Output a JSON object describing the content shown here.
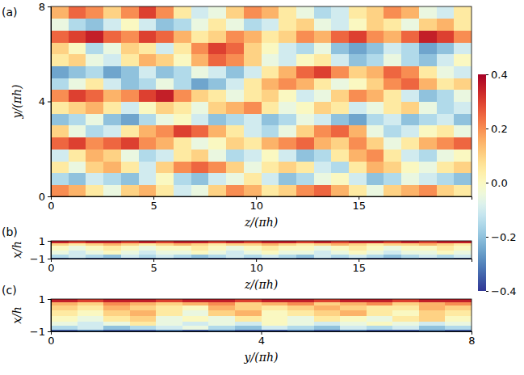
{
  "chart_data": [
    {
      "type": "heatmap",
      "title": "(a)",
      "x_label": "z/(πh)",
      "y_label": "y/(πh)",
      "xlim": [
        0,
        20.5
      ],
      "ylim": [
        0,
        8
      ],
      "xticks": [
        0,
        5,
        10,
        15
      ],
      "yticks": [
        0,
        4,
        8
      ],
      "color_range": [
        -0.4,
        0.4
      ],
      "color_ticks": [
        {
          "value": -0.4,
          "label": "−0.4"
        },
        {
          "value": -0.2,
          "label": "−0.2"
        },
        {
          "value": 0,
          "label": "0.0"
        },
        0.2,
        0.4
      ],
      "x": [
        0.43,
        1.28,
        2.14,
        2.99,
        3.84,
        4.7,
        5.55,
        6.41,
        7.26,
        8.11,
        8.97,
        9.82,
        10.68,
        11.53,
        12.39,
        13.24,
        14.09,
        14.95,
        15.8,
        16.66,
        17.51,
        18.36,
        19.22,
        20.07
      ],
      "y": [
        0.25,
        0.75,
        1.25,
        1.75,
        2.25,
        2.75,
        3.25,
        3.75,
        4.25,
        4.75,
        5.25,
        5.75,
        6.25,
        6.75,
        7.25,
        7.75
      ],
      "cells": [
        [
          0.2,
          0.15,
          0.05,
          -0.05,
          0.1,
          0.15,
          0.05,
          -0.1,
          -0.05,
          0.1,
          0.2,
          0.15,
          0.05,
          0.1,
          0.2,
          0.25,
          0.15,
          0.05,
          -0.05,
          0.1,
          0.15,
          0.2,
          0.1,
          0.05
        ],
        [
          -0.15,
          -0.2,
          -0.1,
          -0.15,
          -0.2,
          -0.1,
          0.0,
          -0.15,
          -0.2,
          -0.1,
          -0.05,
          0.05,
          -0.1,
          -0.2,
          -0.15,
          -0.05,
          0.0,
          -0.1,
          -0.2,
          -0.15,
          -0.05,
          -0.1,
          -0.15,
          -0.2
        ],
        [
          0.05,
          -0.05,
          0.1,
          0.15,
          0.05,
          -0.1,
          0.1,
          0.2,
          0.25,
          0.2,
          0.1,
          -0.05,
          0.05,
          0.1,
          0.05,
          -0.1,
          -0.15,
          0.05,
          0.15,
          0.1,
          0.0,
          -0.05,
          0.05,
          0.1
        ],
        [
          -0.1,
          0.05,
          0.15,
          0.1,
          -0.05,
          -0.15,
          -0.1,
          0.05,
          0.1,
          -0.05,
          -0.15,
          -0.1,
          0.0,
          -0.1,
          -0.2,
          -0.15,
          0.05,
          0.15,
          0.2,
          0.05,
          -0.1,
          -0.15,
          -0.05,
          0.0
        ],
        [
          0.25,
          0.3,
          0.2,
          0.25,
          0.3,
          0.2,
          0.15,
          0.05,
          -0.05,
          0.0,
          0.1,
          0.05,
          0.15,
          0.2,
          0.25,
          0.15,
          0.1,
          0.2,
          0.1,
          -0.05,
          0.05,
          0.15,
          0.2,
          0.25
        ],
        [
          0.1,
          -0.05,
          -0.15,
          -0.1,
          0.05,
          0.15,
          0.2,
          0.3,
          0.25,
          0.15,
          0.05,
          -0.1,
          -0.15,
          -0.05,
          0.1,
          0.2,
          0.25,
          0.15,
          -0.05,
          -0.15,
          -0.1,
          0.0,
          0.05,
          -0.05
        ],
        [
          -0.2,
          -0.15,
          -0.05,
          -0.2,
          -0.25,
          -0.15,
          -0.05,
          0.0,
          -0.1,
          -0.2,
          -0.15,
          -0.1,
          -0.2,
          -0.15,
          -0.05,
          -0.1,
          -0.2,
          -0.25,
          -0.15,
          -0.1,
          -0.2,
          -0.15,
          -0.1,
          -0.2
        ],
        [
          0.05,
          0.1,
          0.15,
          0.05,
          -0.1,
          0.0,
          0.1,
          0.05,
          -0.05,
          0.1,
          0.15,
          0.2,
          0.05,
          -0.05,
          0.0,
          0.1,
          0.05,
          -0.1,
          -0.05,
          0.05,
          0.1,
          -0.05,
          -0.15,
          -0.1
        ],
        [
          0.2,
          0.3,
          0.25,
          0.15,
          0.2,
          0.3,
          0.35,
          0.2,
          0.1,
          0.05,
          -0.05,
          0.05,
          0.1,
          0.0,
          -0.1,
          -0.05,
          0.1,
          0.2,
          0.15,
          0.05,
          -0.1,
          -0.2,
          -0.15,
          -0.05
        ],
        [
          -0.15,
          -0.05,
          0.05,
          -0.1,
          -0.2,
          -0.15,
          -0.05,
          -0.15,
          -0.25,
          -0.2,
          -0.1,
          0.05,
          0.15,
          0.2,
          0.15,
          0.05,
          -0.05,
          0.0,
          0.1,
          0.2,
          0.25,
          0.15,
          0.05,
          0.1
        ],
        [
          -0.25,
          -0.2,
          -0.15,
          -0.25,
          -0.2,
          -0.1,
          -0.2,
          -0.15,
          -0.05,
          -0.1,
          -0.2,
          -0.1,
          0.05,
          0.15,
          0.25,
          0.3,
          0.2,
          0.1,
          0.15,
          0.25,
          0.2,
          0.05,
          -0.05,
          -0.1
        ],
        [
          0.05,
          0.1,
          -0.05,
          -0.1,
          0.05,
          0.15,
          0.1,
          0.0,
          0.15,
          0.25,
          0.2,
          0.1,
          -0.05,
          -0.1,
          0.0,
          0.05,
          -0.1,
          -0.2,
          -0.15,
          -0.05,
          -0.15,
          -0.2,
          -0.1,
          0.0
        ],
        [
          0.1,
          0.0,
          -0.15,
          -0.05,
          0.1,
          0.05,
          -0.1,
          0.05,
          0.2,
          0.3,
          0.25,
          0.1,
          0.0,
          -0.1,
          -0.15,
          -0.05,
          -0.2,
          -0.25,
          -0.2,
          -0.1,
          -0.15,
          -0.25,
          -0.2,
          -0.1
        ],
        [
          0.25,
          0.3,
          0.35,
          0.25,
          0.2,
          0.3,
          0.25,
          0.15,
          0.05,
          0.1,
          0.2,
          0.15,
          0.05,
          0.1,
          0.2,
          0.15,
          0.25,
          0.3,
          0.2,
          0.15,
          0.25,
          0.35,
          0.3,
          0.2
        ],
        [
          -0.05,
          -0.15,
          -0.2,
          -0.1,
          0.0,
          -0.1,
          -0.2,
          -0.15,
          -0.05,
          0.05,
          -0.05,
          -0.15,
          -0.1,
          0.05,
          0.1,
          -0.05,
          -0.1,
          0.0,
          0.1,
          0.05,
          -0.05,
          0.1,
          0.15,
          0.05
        ],
        [
          0.15,
          0.25,
          0.2,
          0.1,
          0.2,
          0.3,
          0.2,
          0.05,
          -0.1,
          -0.05,
          0.1,
          0.2,
          0.15,
          0.05,
          -0.05,
          -0.15,
          -0.1,
          0.05,
          0.1,
          0.2,
          0.15,
          -0.05,
          -0.1,
          0.05
        ]
      ]
    },
    {
      "type": "heatmap",
      "title": "(b)",
      "x_label": "z/(πh)",
      "y_label": "x/h",
      "xlim": [
        0,
        20.5
      ],
      "ylim": [
        -1,
        1
      ],
      "xticks": [
        0,
        5,
        10,
        15
      ],
      "yticks": [
        {
          "value": -1,
          "label": "−1"
        },
        1
      ],
      "x": [
        0.43,
        1.28,
        2.14,
        2.99,
        3.84,
        4.7,
        5.55,
        6.41,
        7.26,
        8.11,
        8.97,
        9.82,
        10.68,
        11.53,
        12.39,
        13.24,
        14.09,
        14.95,
        15.8,
        16.66,
        17.51,
        18.36,
        19.22,
        20.07
      ],
      "y": [
        -0.95,
        -0.7,
        -0.3,
        0.3,
        0.7,
        0.95
      ],
      "cells": [
        [
          -0.35,
          -0.3,
          -0.35,
          -0.3,
          -0.35,
          -0.35,
          -0.3,
          -0.35,
          -0.3,
          -0.35,
          -0.3,
          -0.35,
          -0.35,
          -0.3,
          -0.35,
          -0.3,
          -0.35,
          -0.3,
          -0.35,
          -0.35,
          -0.3,
          -0.35,
          -0.3,
          -0.35
        ],
        [
          -0.15,
          -0.1,
          -0.15,
          -0.2,
          -0.1,
          -0.15,
          -0.1,
          -0.15,
          -0.2,
          -0.15,
          -0.1,
          -0.15,
          -0.1,
          -0.15,
          -0.2,
          -0.1,
          -0.15,
          -0.1,
          -0.15,
          -0.2,
          -0.15,
          -0.1,
          -0.15,
          -0.1
        ],
        [
          -0.05,
          -0.1,
          -0.05,
          0.0,
          -0.05,
          -0.1,
          -0.05,
          -0.05,
          0.0,
          -0.05,
          -0.1,
          -0.05,
          0.0,
          -0.05,
          -0.05,
          -0.1,
          -0.05,
          0.0,
          -0.05,
          -0.1,
          -0.05,
          -0.05,
          0.0,
          -0.05
        ],
        [
          0.0,
          -0.05,
          0.0,
          0.05,
          0.0,
          -0.05,
          0.0,
          0.0,
          0.05,
          0.0,
          -0.05,
          0.0,
          0.05,
          0.0,
          0.0,
          -0.05,
          0.0,
          0.05,
          0.0,
          -0.05,
          0.0,
          0.0,
          0.05,
          0.0
        ],
        [
          0.1,
          0.05,
          0.1,
          0.15,
          0.1,
          0.05,
          0.1,
          0.15,
          0.1,
          0.05,
          0.1,
          0.1,
          0.15,
          0.1,
          0.05,
          0.1,
          0.15,
          0.1,
          0.05,
          0.1,
          0.1,
          0.15,
          0.1,
          0.05
        ],
        [
          0.35,
          0.3,
          0.35,
          0.35,
          0.3,
          0.35,
          0.3,
          0.35,
          0.35,
          0.3,
          0.35,
          0.3,
          0.35,
          0.35,
          0.3,
          0.35,
          0.3,
          0.35,
          0.35,
          0.3,
          0.35,
          0.3,
          0.35,
          0.35
        ]
      ]
    },
    {
      "type": "heatmap",
      "title": "(c)",
      "x_label": "y/(πh)",
      "y_label": "x/h",
      "xlim": [
        0,
        8
      ],
      "ylim": [
        -1,
        1
      ],
      "xticks": [
        0,
        4,
        8
      ],
      "yticks": [
        {
          "value": -1,
          "label": "−1"
        },
        1
      ],
      "x": [
        0.25,
        0.75,
        1.25,
        1.75,
        2.25,
        2.75,
        3.25,
        3.75,
        4.25,
        4.75,
        5.25,
        5.75,
        6.25,
        6.75,
        7.25,
        7.75
      ],
      "y": [
        -0.95,
        -0.75,
        -0.5,
        -0.2,
        0.2,
        0.5,
        0.75,
        0.95
      ],
      "cells": [
        [
          -0.35,
          -0.3,
          -0.35,
          -0.35,
          -0.3,
          -0.35,
          -0.3,
          -0.35,
          -0.35,
          -0.3,
          -0.35,
          -0.3,
          -0.35,
          -0.35,
          -0.3,
          -0.35
        ],
        [
          -0.15,
          -0.1,
          -0.2,
          -0.15,
          -0.1,
          -0.05,
          -0.15,
          -0.2,
          -0.1,
          -0.15,
          -0.2,
          -0.1,
          -0.15,
          -0.1,
          -0.2,
          -0.15
        ],
        [
          -0.05,
          -0.1,
          -0.05,
          0.05,
          -0.05,
          -0.1,
          -0.05,
          -0.1,
          0.0,
          -0.05,
          -0.1,
          -0.05,
          0.0,
          -0.05,
          -0.1,
          -0.05
        ],
        [
          0.0,
          -0.05,
          0.05,
          0.1,
          -0.05,
          0.0,
          -0.05,
          0.05,
          0.0,
          -0.05,
          0.05,
          0.0,
          -0.05,
          0.05,
          0.1,
          0.0
        ],
        [
          0.05,
          0.0,
          0.1,
          0.15,
          0.05,
          -0.05,
          0.1,
          0.15,
          0.0,
          0.05,
          0.1,
          0.15,
          0.05,
          0.0,
          0.1,
          0.05
        ],
        [
          0.1,
          0.05,
          0.15,
          0.1,
          0.05,
          0.0,
          0.15,
          0.1,
          0.05,
          0.1,
          0.15,
          0.1,
          0.05,
          0.05,
          0.15,
          0.1
        ],
        [
          0.15,
          0.1,
          0.2,
          0.15,
          0.1,
          0.15,
          0.2,
          0.1,
          0.15,
          0.2,
          0.1,
          0.15,
          0.2,
          0.1,
          0.15,
          0.2
        ],
        [
          0.35,
          0.3,
          0.35,
          0.35,
          0.3,
          0.35,
          0.35,
          0.3,
          0.35,
          0.35,
          0.3,
          0.35,
          0.35,
          0.3,
          0.35,
          0.35
        ]
      ]
    }
  ]
}
